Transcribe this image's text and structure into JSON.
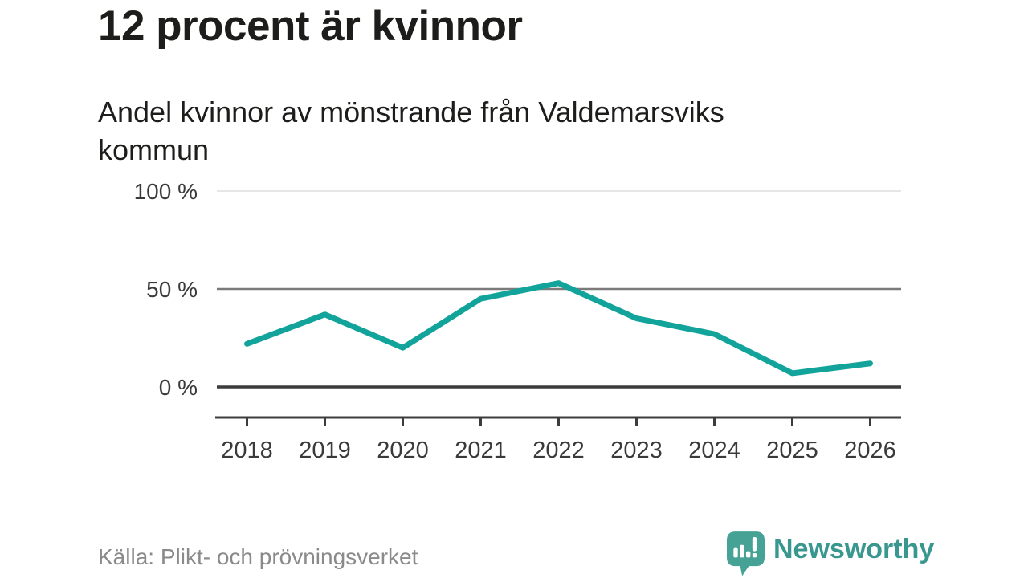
{
  "header": {
    "title": "12 procent är kvinnor",
    "subtitle": "Andel kvinnor av mönstrande från Valdemarsviks kommun"
  },
  "chart_data": {
    "type": "line",
    "title": "12 procent är kvinnor",
    "subtitle": "Andel kvinnor av mönstrande från Valdemarsviks kommun",
    "x": [
      "2018",
      "2019",
      "2020",
      "2021",
      "2022",
      "2023",
      "2024",
      "2025",
      "2026"
    ],
    "series": [
      {
        "name": "Andel kvinnor av mönstrande",
        "values": [
          22,
          37,
          20,
          45,
          53,
          35,
          27,
          7,
          12
        ],
        "unit": "%",
        "color": "#12a49b"
      }
    ],
    "xlabel": "",
    "ylabel": "",
    "ylim": [
      0,
      100
    ],
    "grid": true,
    "legend": "none",
    "yticks": [
      {
        "value": 0,
        "label": "0 %",
        "color": "#3c3c3c",
        "width": 3.5
      },
      {
        "value": 50,
        "label": "50 %",
        "color": "#7b7b7b",
        "width": 2.5
      },
      {
        "value": 100,
        "label": "100 %",
        "color": "#dedede",
        "width": 1.5
      }
    ],
    "axis_text_color": "#3a3a3a",
    "axis_line_color": "#3c3c3c"
  },
  "footer": {
    "source": "Källa: Plikt- och prövningsverket",
    "brand": "Newsworthy"
  },
  "colors": {
    "line": "#12a49b",
    "brand_icon": "#47a296",
    "brand_text": "#38988f",
    "title_text": "#1d1d1b",
    "source_text": "#8a8a8a"
  },
  "icons": {
    "brand_logo": "bar-chart-speech-bubble-icon"
  }
}
